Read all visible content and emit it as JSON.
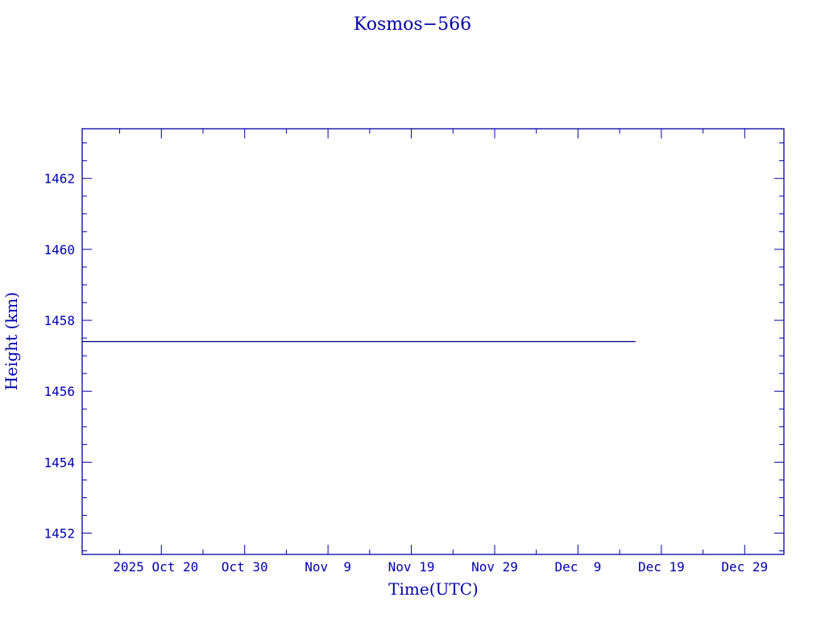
{
  "chart_data": {
    "type": "line",
    "title": "Kosmos−566",
    "xlabel": "Time(UTC)",
    "ylabel": "Height (km)",
    "x_tick_labels": [
      "2025 Oct 20",
      "Oct 30",
      "Nov  9",
      "Nov 19",
      "Nov 29",
      "Dec  9",
      "Dec 19",
      "Dec 29"
    ],
    "x_tick_dates": [
      "2025-10-20",
      "2025-10-30",
      "2025-11-09",
      "2025-11-19",
      "2025-11-29",
      "2025-12-09",
      "2025-12-19",
      "2025-12-29"
    ],
    "xlim": [
      "2025-10-10T12:00",
      "2026-01-02T17:00"
    ],
    "y_ticks": [
      1452,
      1454,
      1456,
      1458,
      1460,
      1462
    ],
    "ylim": [
      1451.4,
      1463.4
    ],
    "grid": false,
    "series": [
      {
        "x": [
          "2025-10-10T12:00",
          "2025-12-15T22:00"
        ],
        "y": [
          1457.4,
          1457.4
        ]
      }
    ],
    "colors": {
      "axes": "#0000a8",
      "line": "#000080"
    }
  }
}
